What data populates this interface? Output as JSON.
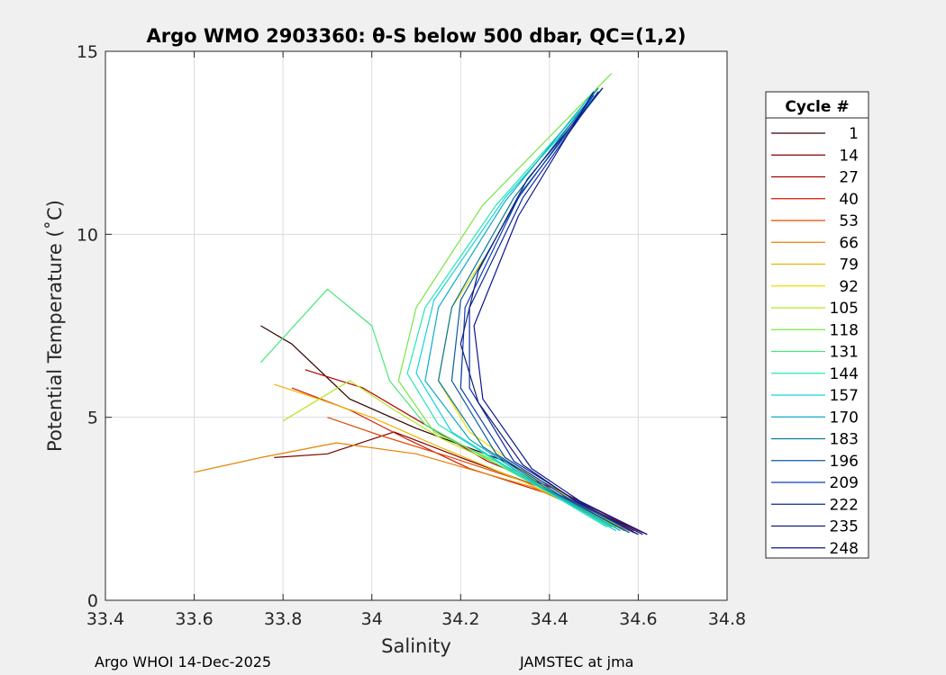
{
  "chart_data": {
    "type": "line",
    "title": "Argo WMO 2903360: θ-S below 500 dbar,  QC=(1,2)",
    "xlabel": "Salinity",
    "ylabel": "Potential Temperature (˚C)",
    "xlim": [
      33.4,
      34.8
    ],
    "ylim": [
      0,
      15
    ],
    "xticks": [
      33.4,
      33.6,
      33.8,
      34,
      34.2,
      34.4,
      34.6,
      34.8
    ],
    "xtick_labels": [
      "33.4",
      "33.6",
      "33.8",
      "34",
      "34.2",
      "34.4",
      "34.6",
      "34.8"
    ],
    "yticks": [
      0,
      5,
      10,
      15
    ],
    "ytick_labels": [
      "0",
      "5",
      "10",
      "15"
    ],
    "grid": true,
    "legend": {
      "title": "Cycle #",
      "placement": "outside-right",
      "entries": [
        {
          "label": "1",
          "color": "#300000"
        },
        {
          "label": "14",
          "color": "#7a0000"
        },
        {
          "label": "27",
          "color": "#b00000"
        },
        {
          "label": "40",
          "color": "#d41a00"
        },
        {
          "label": "53",
          "color": "#e04800"
        },
        {
          "label": "66",
          "color": "#e68000"
        },
        {
          "label": "79",
          "color": "#ecb400"
        },
        {
          "label": "92",
          "color": "#f0e000"
        },
        {
          "label": "105",
          "color": "#b4e61e"
        },
        {
          "label": "118",
          "color": "#78e646"
        },
        {
          "label": "131",
          "color": "#46e678"
        },
        {
          "label": "144",
          "color": "#28e6b4"
        },
        {
          "label": "157",
          "color": "#14d2dc"
        },
        {
          "label": "170",
          "color": "#0aaac8"
        },
        {
          "label": "183",
          "color": "#0a7896"
        },
        {
          "label": "196",
          "color": "#0a5aa0"
        },
        {
          "label": "209",
          "color": "#0a3cb4"
        },
        {
          "label": "222",
          "color": "#0a28a0"
        },
        {
          "label": "235",
          "color": "#141e78"
        },
        {
          "label": "248",
          "color": "#0a1490"
        }
      ]
    },
    "series": [
      {
        "color": "#300000",
        "x": [
          34.62,
          34.45,
          34.3,
          34.1,
          33.95,
          33.82,
          33.75
        ],
        "y": [
          1.8,
          2.8,
          3.8,
          4.7,
          5.5,
          7.0,
          7.5
        ]
      },
      {
        "color": "#7a0000",
        "x": [
          34.61,
          34.4,
          34.2,
          34.05,
          33.9,
          33.78
        ],
        "y": [
          1.85,
          3.0,
          3.9,
          4.6,
          4.0,
          3.9
        ]
      },
      {
        "color": "#b00000",
        "x": [
          34.6,
          34.42,
          34.26,
          34.12,
          33.98,
          33.85
        ],
        "y": [
          1.9,
          3.0,
          3.8,
          4.8,
          5.8,
          6.3
        ]
      },
      {
        "color": "#d41a00",
        "x": [
          34.6,
          34.4,
          34.22,
          34.08,
          33.95,
          33.82
        ],
        "y": [
          1.8,
          2.9,
          3.6,
          4.4,
          5.2,
          5.8
        ]
      },
      {
        "color": "#e04800",
        "x": [
          34.59,
          34.38,
          34.18,
          34.02,
          33.9
        ],
        "y": [
          1.9,
          3.1,
          3.9,
          4.5,
          5.0
        ]
      },
      {
        "color": "#e68000",
        "x": [
          34.58,
          34.36,
          34.1,
          33.92,
          33.75,
          33.6
        ],
        "y": [
          1.9,
          3.1,
          4.0,
          4.3,
          3.9,
          3.5
        ]
      },
      {
        "color": "#ecb400",
        "x": [
          34.57,
          34.35,
          34.15,
          34.0,
          33.88,
          33.78
        ],
        "y": [
          1.9,
          3.2,
          4.2,
          5.0,
          5.5,
          5.9
        ]
      },
      {
        "color": "#f0e000",
        "x": [
          34.56,
          34.36,
          34.22,
          34.15,
          34.18,
          34.25
        ],
        "y": [
          2.0,
          3.4,
          4.6,
          6.0,
          8.0,
          9.3
        ]
      },
      {
        "color": "#b4e61e",
        "x": [
          34.55,
          34.34,
          34.16,
          34.05,
          33.95,
          33.8
        ],
        "y": [
          2.0,
          3.4,
          4.4,
          5.2,
          6.0,
          4.9
        ]
      },
      {
        "color": "#78e646",
        "x": [
          34.55,
          34.33,
          34.14,
          34.06,
          34.1,
          34.25,
          34.54
        ],
        "y": [
          2.0,
          3.5,
          4.6,
          6.0,
          8.0,
          10.8,
          14.4
        ]
      },
      {
        "color": "#46e678",
        "x": [
          34.54,
          34.3,
          34.12,
          34.04,
          34.0,
          33.9,
          33.75
        ],
        "y": [
          2.0,
          3.6,
          4.8,
          6.0,
          7.5,
          8.5,
          6.5
        ]
      },
      {
        "color": "#28e6b4",
        "x": [
          34.53,
          34.32,
          34.15,
          34.08,
          34.12,
          34.28,
          34.5
        ],
        "y": [
          2.0,
          3.5,
          4.8,
          6.2,
          8.0,
          10.8,
          13.8
        ]
      },
      {
        "color": "#14d2dc",
        "x": [
          34.55,
          34.35,
          34.18,
          34.1,
          34.14,
          34.3,
          34.52
        ],
        "y": [
          1.9,
          3.3,
          4.6,
          6.2,
          8.2,
          11.0,
          14.0
        ]
      },
      {
        "color": "#0aaac8",
        "x": [
          34.56,
          34.38,
          34.22,
          34.12,
          34.15,
          34.3,
          34.5
        ],
        "y": [
          1.9,
          3.1,
          4.4,
          6.0,
          8.0,
          10.9,
          13.9
        ]
      },
      {
        "color": "#0a7896",
        "x": [
          34.57,
          34.4,
          34.25,
          34.15,
          34.18,
          34.32,
          34.51
        ],
        "y": [
          1.9,
          3.0,
          4.2,
          6.0,
          8.0,
          11.0,
          14.0
        ]
      },
      {
        "color": "#0a5aa0",
        "x": [
          34.58,
          34.42,
          34.28,
          34.18,
          34.2,
          34.34,
          34.52
        ],
        "y": [
          1.85,
          2.9,
          4.0,
          6.0,
          8.2,
          11.2,
          14.0
        ]
      },
      {
        "color": "#0a3cb4",
        "x": [
          34.59,
          34.44,
          34.3,
          34.2,
          34.21,
          34.33,
          34.5
        ],
        "y": [
          1.85,
          2.8,
          3.9,
          5.8,
          8.0,
          11.0,
          13.8
        ]
      },
      {
        "color": "#0a28a0",
        "x": [
          34.6,
          34.45,
          34.32,
          34.22,
          34.22,
          34.34,
          34.51
        ],
        "y": [
          1.8,
          2.8,
          3.8,
          5.8,
          8.0,
          11.0,
          13.9
        ]
      },
      {
        "color": "#141e78",
        "x": [
          34.61,
          34.46,
          34.34,
          34.24,
          34.2,
          34.24,
          34.35,
          34.52
        ],
        "y": [
          1.8,
          2.7,
          3.7,
          5.4,
          7.0,
          9.0,
          11.5,
          14.0
        ]
      },
      {
        "color": "#0a1490",
        "x": [
          34.62,
          34.47,
          34.36,
          34.25,
          34.23,
          34.33,
          34.5
        ],
        "y": [
          1.8,
          2.7,
          3.6,
          5.5,
          7.5,
          10.5,
          13.9
        ]
      }
    ]
  },
  "footer": {
    "left": "Argo WHOI 14-Dec-2025",
    "right": "JAMSTEC at jma"
  }
}
